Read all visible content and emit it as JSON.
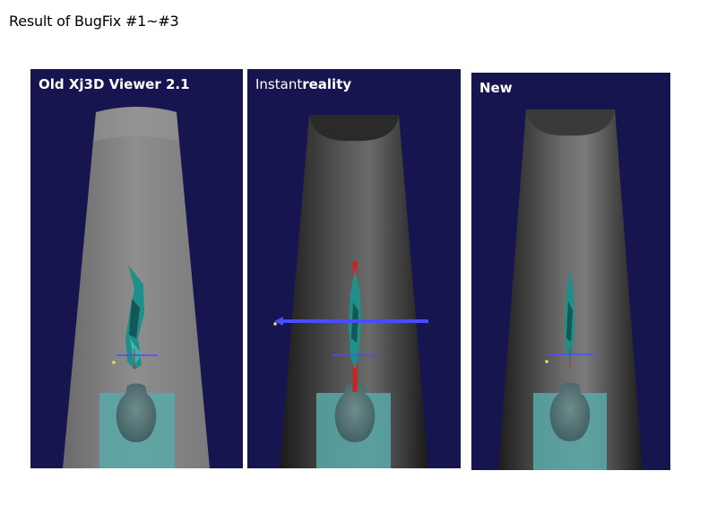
{
  "page": {
    "title": "Result of BugFix #1~#3"
  },
  "panels": {
    "old": {
      "label": "Old Xj3D Viewer 2.1"
    },
    "instantreality": {
      "label_part1": "Instant",
      "label_part2": "reality"
    },
    "new": {
      "label": "New"
    }
  },
  "colors": {
    "viewport_bg": "#17154f",
    "cone_gray": "#8a8a8a",
    "plane_teal": "#58a8a8",
    "model_teal": "#1f8f8a",
    "axis_blue": "#4a4cff",
    "axis_red": "#d02020"
  }
}
